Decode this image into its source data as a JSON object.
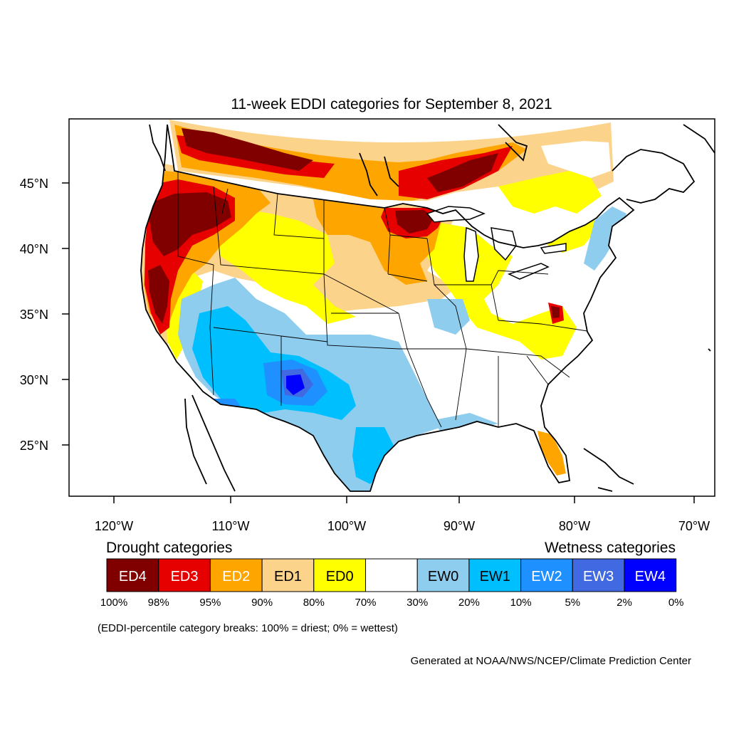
{
  "title": "11-week EDDI categories for September 8, 2021",
  "map": {
    "lat_labels": [
      "45°N",
      "40°N",
      "35°N",
      "30°N",
      "25°N"
    ],
    "lat_values": [
      45,
      40,
      35,
      30,
      25
    ],
    "lon_labels": [
      "120°W",
      "110°W",
      "100°W",
      "90°W",
      "80°W",
      "70°W"
    ],
    "lon_values": [
      -120,
      -110,
      -100,
      -90,
      -80,
      -70
    ],
    "lon_range": [
      -124,
      -68.5
    ],
    "lat_range": [
      21,
      49.5
    ]
  },
  "legend": {
    "drought_heading": "Drought categories",
    "wetness_heading": "Wetness categories",
    "boxes": [
      {
        "label": "ED4",
        "color": "#800000",
        "text_color": "#ffffff"
      },
      {
        "label": "ED3",
        "color": "#e60000",
        "text_color": "#ffffff"
      },
      {
        "label": "ED2",
        "color": "#ffa500",
        "text_color": "#ffffff"
      },
      {
        "label": "ED1",
        "color": "#fcd38a",
        "text_color": "#000000"
      },
      {
        "label": "ED0",
        "color": "#ffff00",
        "text_color": "#000000"
      },
      {
        "label": "",
        "color": "#ffffff",
        "text_color": "#000000"
      },
      {
        "label": "EW0",
        "color": "#8fcdee",
        "text_color": "#000000"
      },
      {
        "label": "EW1",
        "color": "#00bfff",
        "text_color": "#000000"
      },
      {
        "label": "EW2",
        "color": "#1e90ff",
        "text_color": "#ffffff"
      },
      {
        "label": "EW3",
        "color": "#4169e1",
        "text_color": "#ffffff"
      },
      {
        "label": "EW4",
        "color": "#0000ff",
        "text_color": "#ffffff"
      }
    ],
    "breaks": [
      "100%",
      "98%",
      "95%",
      "90%",
      "80%",
      "70%",
      "30%",
      "20%",
      "10%",
      "5%",
      "2%",
      "0%"
    ],
    "note": "(EDDI-percentile category breaks: 100% = driest; 0% = wettest)"
  },
  "credit": "Generated at NOAA/NWS/NCEP/Climate Prediction Center"
}
